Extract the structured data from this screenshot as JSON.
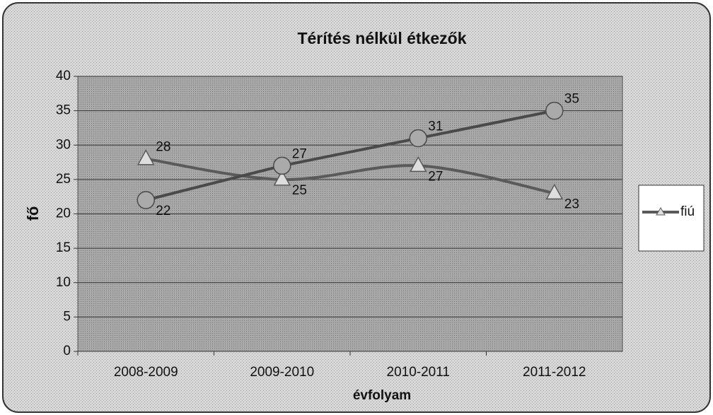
{
  "chart_data": {
    "type": "line",
    "title": "Térítés nélkül étkezők",
    "x_label": "évfolyam",
    "y_label": "fő",
    "categories": [
      "2008-2009",
      "2009-2010",
      "2010-2011",
      "2011-2012"
    ],
    "series": [
      {
        "name": "fiú",
        "color": "#5a5a5a",
        "marker": "triangle",
        "smooth": true,
        "values": [
          28,
          25,
          27,
          23
        ]
      },
      {
        "color": "#4a4a4a",
        "marker": "circle",
        "smooth": false,
        "values": [
          22,
          27,
          31,
          35
        ]
      }
    ],
    "ylim": [
      0,
      40
    ],
    "yticks": [
      0,
      5,
      10,
      15,
      20,
      25,
      30,
      35,
      40
    ],
    "grid": true,
    "legend": "right"
  }
}
